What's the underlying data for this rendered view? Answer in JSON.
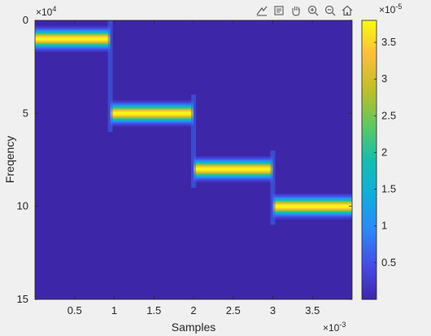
{
  "toolbar": {
    "icons": [
      "export-icon",
      "brush-icon",
      "pan-icon",
      "zoom-in-icon",
      "zoom-out-icon",
      "home-icon"
    ]
  },
  "chart_data": {
    "type": "heatmap",
    "title": "",
    "xlabel": "Samples",
    "ylabel": "Freqency",
    "x_multiplier": "×10",
    "x_exponent": "-3",
    "y_multiplier": "×10",
    "y_exponent": "4",
    "c_multiplier": "×10",
    "c_exponent": "-5",
    "xlim": [
      0,
      4
    ],
    "ylim": [
      0,
      15
    ],
    "y_reversed": true,
    "clim": [
      0,
      3.8
    ],
    "x_ticks": [
      0.5,
      1,
      1.5,
      2,
      2.5,
      3,
      3.5
    ],
    "x_tick_labels": [
      "0.5",
      "1",
      "1.5",
      "2",
      "2.5",
      "3",
      "3.5"
    ],
    "y_ticks": [
      0,
      5,
      10,
      15
    ],
    "y_tick_labels": [
      "0",
      "5",
      "10",
      "15"
    ],
    "c_ticks": [
      0.5,
      1,
      1.5,
      2,
      2.5,
      3,
      3.5
    ],
    "c_tick_labels": [
      "0.5",
      "1",
      "1.5",
      "2",
      "2.5",
      "3",
      "3.5"
    ],
    "colormap": "parula",
    "colors": {
      "background": "#3e26a8",
      "peak": "#f9fb0e"
    },
    "segments": [
      {
        "x_start": 0,
        "x_end": 0.95,
        "frequency": 1.0,
        "peak": 3.8
      },
      {
        "x_start": 0.95,
        "x_end": 2.0,
        "frequency": 5.0,
        "peak": 3.8
      },
      {
        "x_start": 2.0,
        "x_end": 3.0,
        "frequency": 8.0,
        "peak": 3.8
      },
      {
        "x_start": 3.0,
        "x_end": 4.0,
        "frequency": 10.0,
        "peak": 3.8
      }
    ]
  }
}
